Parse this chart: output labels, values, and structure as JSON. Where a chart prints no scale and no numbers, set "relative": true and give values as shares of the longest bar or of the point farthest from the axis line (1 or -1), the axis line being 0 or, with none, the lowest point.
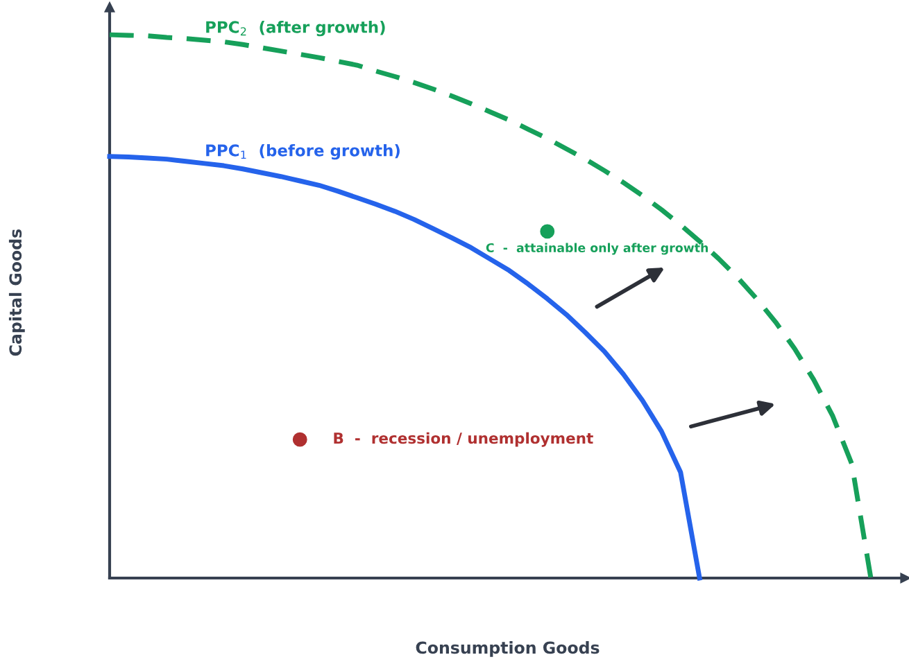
{
  "chart_data": {
    "type": "line",
    "relative": true,
    "xlabel": "Consumption Goods",
    "ylabel": "Capital Goods",
    "categories": [
      null,
      null,
      null,
      null,
      null,
      null,
      null,
      null,
      null,
      null,
      null,
      null,
      null,
      null,
      null,
      null,
      null,
      null,
      null,
      null,
      null,
      null,
      null,
      null,
      null,
      null,
      null,
      null,
      null,
      null,
      null,
      null,
      null,
      null,
      null,
      null,
      null,
      null,
      null,
      null,
      null
    ],
    "series": [
      {
        "name": "PPC$_{1}$  (before growth)",
        "color": "#2563eb",
        "line_style": "solid",
        "values": [
          0.776,
          0.775,
          0.773,
          0.771,
          0.767,
          0.763,
          0.759,
          0.753,
          0.746,
          0.739,
          0.731,
          0.723,
          0.712,
          0.7,
          0.688,
          0.675,
          0.66,
          0.643,
          0.626,
          0.608,
          0.587,
          0.566,
          0.541,
          0.514,
          0.485,
          0.452,
          0.417,
          0.375,
          0.327,
          0.27,
          0.195,
          0,
          null,
          null,
          null,
          null,
          null,
          null,
          null,
          null,
          null
        ]
      },
      {
        "name": "PPC$_{2}$  (after growth)",
        "color": "#16a05a",
        "line_style": "dashed",
        "values": [
          1,
          0.999,
          0.998,
          0.995,
          0.993,
          0.99,
          0.987,
          0.982,
          0.976,
          0.97,
          0.964,
          0.958,
          0.951,
          0.944,
          0.933,
          0.923,
          0.912,
          0.9,
          0.887,
          0.873,
          0.858,
          0.843,
          0.826,
          0.809,
          0.79,
          0.771,
          0.75,
          0.728,
          0.704,
          0.678,
          0.65,
          0.62,
          0.588,
          0.553,
          0.514,
          0.471,
          0.422,
          0.365,
          0.298,
          0.21,
          0
        ]
      },
      {
        "marker": "circle",
        "line_style": "none",
        "name": "C  -  attainable only after growth",
        "color": "#16a05a",
        "values": [
          null,
          null,
          null,
          null,
          null,
          null,
          null,
          null,
          null,
          null,
          null,
          null,
          null,
          null,
          null,
          null,
          null,
          null,
          null,
          null,
          null,
          null,
          null,
          0.638,
          null,
          null,
          null,
          null,
          null,
          null,
          null,
          null,
          null,
          null,
          null,
          null,
          null,
          null,
          null,
          null,
          null
        ]
      },
      {
        "marker": "circle",
        "line_style": "none",
        "name": "B  -  recession / unemployment",
        "color": "#b03030",
        "values": [
          null,
          null,
          null,
          null,
          null,
          null,
          null,
          null,
          null,
          null,
          0.255,
          null,
          null,
          null,
          null,
          null,
          null,
          null,
          null,
          null,
          null,
          null,
          null,
          null,
          null,
          null,
          null,
          null,
          null,
          null,
          null,
          null,
          null,
          null,
          null,
          null,
          null,
          null,
          null,
          null,
          null
        ]
      }
    ]
  }
}
